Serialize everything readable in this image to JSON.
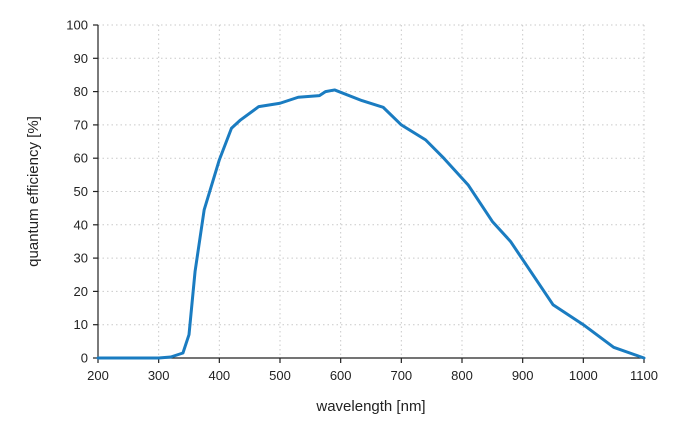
{
  "chart_data": {
    "type": "line",
    "title": "",
    "xlabel": "wavelength [nm]",
    "ylabel": "quantum efficiency [%]",
    "xlim": [
      200,
      1100
    ],
    "ylim": [
      0,
      100
    ],
    "x_ticks": [
      200,
      300,
      400,
      500,
      600,
      700,
      800,
      900,
      1000,
      1100
    ],
    "y_ticks": [
      0,
      10,
      20,
      30,
      40,
      50,
      60,
      70,
      80,
      90,
      100
    ],
    "grid": true,
    "series_color": "#1a7cc1",
    "series": [
      {
        "x": [
          200,
          300,
          320,
          340,
          350,
          360,
          375,
          400,
          420,
          435,
          465,
          500,
          530,
          565,
          575,
          590,
          635,
          670,
          700,
          740,
          770,
          810,
          850,
          880,
          950,
          1000,
          1050,
          1100
        ],
        "y": [
          0,
          0,
          0.3,
          1.5,
          7,
          26,
          44.5,
          59.5,
          69,
          71.5,
          75.5,
          76.5,
          78.3,
          78.8,
          80,
          80.5,
          77.3,
          75.3,
          70,
          65.5,
          60,
          52,
          41,
          35,
          16,
          10,
          3.2,
          0
        ]
      }
    ]
  }
}
